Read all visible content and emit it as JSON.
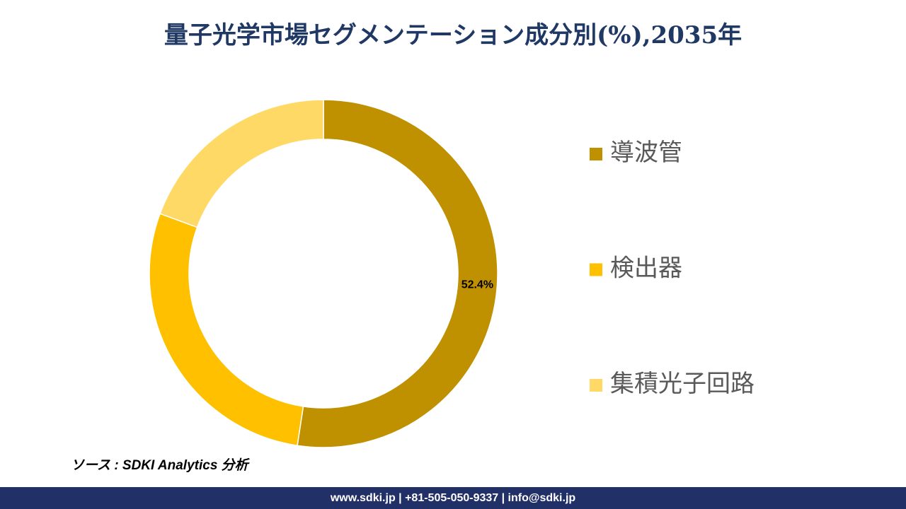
{
  "chart_data": {
    "type": "pie",
    "donut": true,
    "title": "量子光学市場セグメンテーション成分別(%),2035年",
    "categories": [
      "導波管",
      "検出器",
      "集積光子回路"
    ],
    "values": [
      52.4,
      28.2,
      19.4
    ],
    "value_labels": [
      "52.4%",
      null,
      null
    ],
    "colors": [
      "#bf9000",
      "#ffc000",
      "#ffd966"
    ]
  },
  "source": "ソース : SDKI Analytics 分析",
  "footer": "www.sdki.jp | +81-505-050-9337 | info@sdki.jp"
}
